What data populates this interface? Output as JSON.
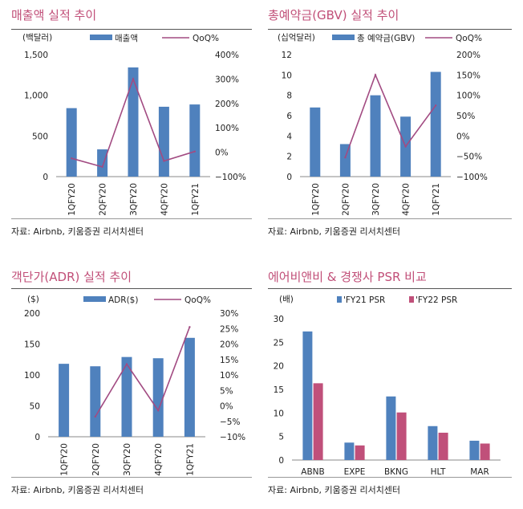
{
  "source_text": "자료: Airbnb, 키움증권 리서치센터",
  "colors": {
    "bar": "#4f81bd",
    "line": "#a24b82",
    "bar2": "#c0507a",
    "title": "#c14f78"
  },
  "chart_data": [
    {
      "type": "bar",
      "title": "매출액 실적 추이",
      "unit_left": "(백달러)",
      "categories": [
        "1QFY20",
        "2QFY20",
        "3QFY20",
        "4QFY20",
        "1QFY21"
      ],
      "series": [
        {
          "name": "매출액",
          "type": "bar",
          "axis": "left",
          "values": [
            842,
            335,
            1342,
            859,
            887
          ]
        },
        {
          "name": "QoQ%",
          "type": "line",
          "axis": "right",
          "values": [
            -25,
            -60,
            300,
            -36,
            3
          ]
        }
      ],
      "left_axis": {
        "min": 0,
        "max": 1500,
        "ticks": [
          0,
          500,
          1000,
          1500
        ],
        "tick_labels": [
          "0",
          "500",
          "1,000",
          "1,500"
        ]
      },
      "right_axis": {
        "min": -100,
        "max": 400,
        "ticks": [
          -100,
          0,
          100,
          200,
          300,
          400
        ],
        "tick_labels": [
          "−100%",
          "0%",
          "100%",
          "200%",
          "300%",
          "400%"
        ]
      },
      "source": "자료: Airbnb, 키움증권 리서치센터"
    },
    {
      "type": "bar",
      "title": "총예약금(GBV) 실적 추이",
      "unit_left": "(십억달러)",
      "categories": [
        "1QFY20",
        "2QFY20",
        "3QFY20",
        "4QFY20",
        "1QFY21"
      ],
      "series": [
        {
          "name": "총 예약금(GBV)",
          "type": "bar",
          "axis": "left",
          "values": [
            6.8,
            3.2,
            8.0,
            5.9,
            10.3
          ]
        },
        {
          "name": "QoQ%",
          "type": "line",
          "axis": "right",
          "values": [
            null,
            -53,
            150,
            -26,
            75
          ]
        }
      ],
      "left_axis": {
        "min": 0,
        "max": 12,
        "ticks": [
          0,
          2,
          4,
          6,
          8,
          10,
          12
        ],
        "tick_labels": [
          "0",
          "2",
          "4",
          "6",
          "8",
          "10",
          "12"
        ]
      },
      "right_axis": {
        "min": -100,
        "max": 200,
        "ticks": [
          -100,
          -50,
          0,
          50,
          100,
          150,
          200
        ],
        "tick_labels": [
          "−100%",
          "−50%",
          "0%",
          "50%",
          "100%",
          "150%",
          "200%"
        ]
      },
      "source": "자료: Airbnb, 키움증권 리서치센터"
    },
    {
      "type": "bar",
      "title": "객단가(ADR) 실적 추이",
      "unit_left": "($)",
      "categories": [
        "1QFY20",
        "2QFY20",
        "3QFY20",
        "4QFY20",
        "1QFY21"
      ],
      "series": [
        {
          "name": "ADR($)",
          "type": "bar",
          "axis": "left",
          "values": [
            118,
            114,
            129,
            127,
            160
          ]
        },
        {
          "name": "QoQ%",
          "type": "line",
          "axis": "right",
          "values": [
            null,
            -3.5,
            13.5,
            -1.5,
            25.5
          ]
        }
      ],
      "left_axis": {
        "min": 0,
        "max": 200,
        "ticks": [
          0,
          50,
          100,
          150,
          200
        ],
        "tick_labels": [
          "0",
          "50",
          "100",
          "150",
          "200"
        ]
      },
      "right_axis": {
        "min": -10,
        "max": 30,
        "ticks": [
          -10,
          -5,
          0,
          5,
          10,
          15,
          20,
          25,
          30
        ],
        "tick_labels": [
          "−10%",
          "−5%",
          "0%",
          "5%",
          "10%",
          "15%",
          "20%",
          "25%",
          "30%"
        ]
      },
      "source": "자료: Airbnb, 키움증권 리서치센터"
    },
    {
      "type": "bar",
      "title": "에어비앤비 & 경쟁사 PSR 비교",
      "unit_left": "(배)",
      "categories": [
        "ABNB",
        "EXPE",
        "BKNG",
        "HLT",
        "MAR"
      ],
      "series": [
        {
          "name": "'FY21 PSR",
          "type": "bar",
          "axis": "left",
          "values": [
            27.3,
            3.7,
            13.5,
            7.2,
            4.1
          ]
        },
        {
          "name": "'FY22 PSR",
          "type": "bar",
          "axis": "left",
          "values": [
            16.3,
            3.1,
            10.1,
            5.8,
            3.5
          ]
        }
      ],
      "left_axis": {
        "min": 0,
        "max": 30,
        "ticks": [
          0,
          5,
          10,
          15,
          20,
          25,
          30
        ],
        "tick_labels": [
          "0",
          "5",
          "10",
          "15",
          "20",
          "25",
          "30"
        ]
      },
      "source": "자료: Airbnb, 키움증권 리서치센터"
    }
  ]
}
